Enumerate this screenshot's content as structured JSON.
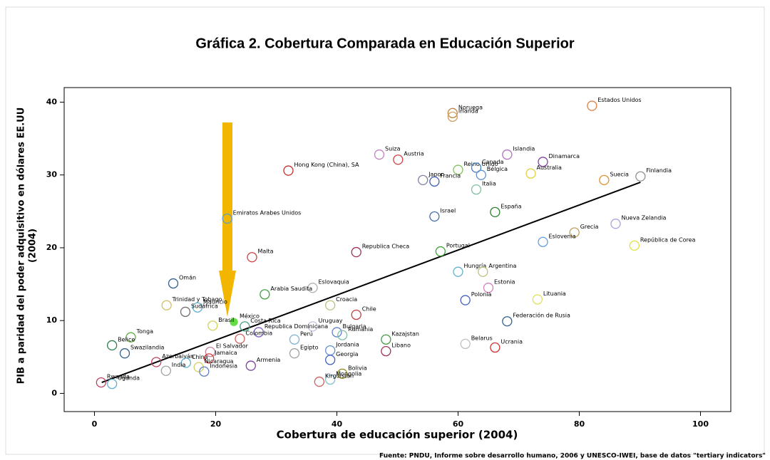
{
  "chart_data": {
    "type": "scatter",
    "title": "Gráfica 2. Cobertura Comparada en Educación Superior",
    "x_label": "Cobertura de educación superior (2004)",
    "y_label": [
      "PIB a paridad del poder adquisitivo en dólares EE.UU",
      "(2004)"
    ],
    "source": "Fuente: PNDU, Informe sobre desarrollo humano, 2006 y UNESCO-IWEI, base de datos \"tertiary indicators\"",
    "xlim": [
      -5,
      105
    ],
    "xticks": [
      0,
      20,
      40,
      60,
      80,
      100
    ],
    "ylim": [
      -2.5,
      42
    ],
    "yticks": [
      0,
      10,
      20,
      30,
      40
    ],
    "highlight_color": "#66dd44",
    "trend": {
      "color": "#000000",
      "x": [
        1.2,
        90.1
      ],
      "y": [
        1.5,
        29.0
      ]
    },
    "points": [
      {
        "label": "Estados Unidos",
        "x": 82.1,
        "y": 39.5,
        "color": "#e08040"
      },
      {
        "label": "Noruega",
        "x": 59.1,
        "y": 38.5,
        "color": "#c08040"
      },
      {
        "label": "Irlanda",
        "x": 59.1,
        "y": 38.0,
        "color": "#d0a060"
      },
      {
        "label": "Suiza",
        "x": 47.0,
        "y": 32.8,
        "color": "#c080c0"
      },
      {
        "label": "Austria",
        "x": 50.1,
        "y": 32.1,
        "color": "#d04040"
      },
      {
        "label": "Islandia",
        "x": 68.1,
        "y": 32.8,
        "color": "#b070c0"
      },
      {
        "label": "Dinamarca",
        "x": 74.0,
        "y": 31.8,
        "color": "#8040a0"
      },
      {
        "label": "Hong Kong (China), SA",
        "x": 32.0,
        "y": 30.6,
        "color": "#c03030"
      },
      {
        "label": "Reino Unido",
        "x": 60.0,
        "y": 30.7,
        "color": "#80c060"
      },
      {
        "label": "Canada",
        "x": 63.0,
        "y": 31.0,
        "color": "#4080c0"
      },
      {
        "label": "Bélgica",
        "x": 63.8,
        "y": 30.0,
        "color": "#6090d0"
      },
      {
        "label": "Australia",
        "x": 72.0,
        "y": 30.2,
        "color": "#e0d040"
      },
      {
        "label": "Japon",
        "x": 54.2,
        "y": 29.3,
        "color": "#8080a0"
      },
      {
        "label": "Francia",
        "x": 56.1,
        "y": 29.1,
        "color": "#4060c0"
      },
      {
        "label": "Italia",
        "x": 63.0,
        "y": 28.0,
        "color": "#80c0a0"
      },
      {
        "label": "Suecia",
        "x": 84.1,
        "y": 29.3,
        "color": "#e09030"
      },
      {
        "label": "Finlandia",
        "x": 90.1,
        "y": 29.8,
        "color": "#909090"
      },
      {
        "label": "Israel",
        "x": 56.1,
        "y": 24.3,
        "color": "#4070b0"
      },
      {
        "label": "España",
        "x": 66.1,
        "y": 24.9,
        "color": "#308030"
      },
      {
        "label": "Emiratos Arabes Unidos",
        "x": 21.9,
        "y": 24.0,
        "color": "#60a0c0"
      },
      {
        "label": "Nueva Zelandia",
        "x": 86.0,
        "y": 23.3,
        "color": "#b0a0e0"
      },
      {
        "label": "Grecia",
        "x": 79.2,
        "y": 22.1,
        "color": "#c0a060"
      },
      {
        "label": "Eslovenia",
        "x": 74.0,
        "y": 20.8,
        "color": "#60a0e0"
      },
      {
        "label": "República de Corea",
        "x": 89.1,
        "y": 20.3,
        "color": "#e0e040"
      },
      {
        "label": "Republica Checa",
        "x": 43.2,
        "y": 19.4,
        "color": "#a03060"
      },
      {
        "label": "Portugal",
        "x": 57.1,
        "y": 19.5,
        "color": "#40a040"
      },
      {
        "label": "Malta",
        "x": 26.0,
        "y": 18.7,
        "color": "#d04040"
      },
      {
        "label": "Hungría",
        "x": 60.0,
        "y": 16.7,
        "color": "#60b0d0"
      },
      {
        "label": "Argentina",
        "x": 64.1,
        "y": 16.7,
        "color": "#c0c080"
      },
      {
        "label": "Omán",
        "x": 13.0,
        "y": 15.1,
        "color": "#306090"
      },
      {
        "label": "Eslovaquia",
        "x": 36.0,
        "y": 14.5,
        "color": "#b0b0b0"
      },
      {
        "label": "Estonia",
        "x": 65.0,
        "y": 14.5,
        "color": "#d080c0"
      },
      {
        "label": "Arabia Saudita",
        "x": 28.1,
        "y": 13.6,
        "color": "#40a040"
      },
      {
        "label": "Lituania",
        "x": 73.1,
        "y": 12.9,
        "color": "#e0e060"
      },
      {
        "label": "Polonia",
        "x": 61.2,
        "y": 12.8,
        "color": "#4060c0"
      },
      {
        "label": "Trinidad y Tobago",
        "x": 11.9,
        "y": 12.1,
        "color": "#d0c060"
      },
      {
        "label": "Croacia",
        "x": 38.9,
        "y": 12.1,
        "color": "#c0c080"
      },
      {
        "label": "Mauricio",
        "x": 17.0,
        "y": 11.8,
        "color": "#60b0d0"
      },
      {
        "label": "Sudáfrica",
        "x": 15.0,
        "y": 11.2,
        "color": "#707070"
      },
      {
        "label": "Chile",
        "x": 43.2,
        "y": 10.8,
        "color": "#c04040"
      },
      {
        "label": "México",
        "x": 23.0,
        "y": 9.8,
        "color": "#66dd44"
      },
      {
        "label": "Federación de Rusia",
        "x": 68.1,
        "y": 9.9,
        "color": "#306090"
      },
      {
        "label": "Brasil",
        "x": 19.5,
        "y": 9.3,
        "color": "#d0d060"
      },
      {
        "label": "Costa Rica",
        "x": 24.8,
        "y": 9.2,
        "color": "#40a080"
      },
      {
        "label": "Uruguay",
        "x": 36.0,
        "y": 9.2,
        "color": "#c0c0e0"
      },
      {
        "label": "Tonga",
        "x": 6.0,
        "y": 7.7,
        "color": "#60b040"
      },
      {
        "label": "Belice",
        "x": 2.9,
        "y": 6.6,
        "color": "#308050"
      },
      {
        "label": "Republica Dominicana",
        "x": 27.1,
        "y": 8.4,
        "color": "#8060c0"
      },
      {
        "label": "Colombia",
        "x": 24.0,
        "y": 7.5,
        "color": "#d06060"
      },
      {
        "label": "Bulgaria",
        "x": 40.0,
        "y": 8.4,
        "color": "#6080d0"
      },
      {
        "label": "Rumania",
        "x": 40.9,
        "y": 8.0,
        "color": "#80c0a0"
      },
      {
        "label": "Kazajstan",
        "x": 48.1,
        "y": 7.4,
        "color": "#40a040"
      },
      {
        "label": "Libano",
        "x": 48.1,
        "y": 5.8,
        "color": "#a03060"
      },
      {
        "label": "Belarus",
        "x": 61.2,
        "y": 6.8,
        "color": "#c0c0c0"
      },
      {
        "label": "Ucrania",
        "x": 66.1,
        "y": 6.3,
        "color": "#d03030"
      },
      {
        "label": "Swazilandia",
        "x": 5.0,
        "y": 5.5,
        "color": "#306090"
      },
      {
        "label": "Perú",
        "x": 33.0,
        "y": 7.4,
        "color": "#80b0d0"
      },
      {
        "label": "El Salvador",
        "x": 19.1,
        "y": 5.7,
        "color": "#c080a0"
      },
      {
        "label": "Egipto",
        "x": 33.0,
        "y": 5.5,
        "color": "#a0a0a0"
      },
      {
        "label": "Jordania",
        "x": 38.9,
        "y": 5.9,
        "color": "#6090d0"
      },
      {
        "label": "Azerbaiyán",
        "x": 10.2,
        "y": 4.3,
        "color": "#c04060"
      },
      {
        "label": "China",
        "x": 15.1,
        "y": 4.2,
        "color": "#60b0d0"
      },
      {
        "label": "Jamaica",
        "x": 18.9,
        "y": 4.8,
        "color": "#d04040"
      },
      {
        "label": "Armenia",
        "x": 25.8,
        "y": 3.8,
        "color": "#8040a0"
      },
      {
        "label": "Georgia",
        "x": 38.9,
        "y": 4.6,
        "color": "#4060c0"
      },
      {
        "label": "India",
        "x": 11.8,
        "y": 3.1,
        "color": "#a0a0a0"
      },
      {
        "label": "Nicaragua",
        "x": 17.2,
        "y": 3.6,
        "color": "#d0d060"
      },
      {
        "label": "Indonesia",
        "x": 18.1,
        "y": 3.0,
        "color": "#6080c0"
      },
      {
        "label": "Bolivia",
        "x": 40.9,
        "y": 2.7,
        "color": "#909020"
      },
      {
        "label": "Mongolia",
        "x": 38.9,
        "y": 1.9,
        "color": "#80c0d0"
      },
      {
        "label": "Kirguistán",
        "x": 37.1,
        "y": 1.6,
        "color": "#d06060"
      },
      {
        "label": "Uganda",
        "x": 2.9,
        "y": 1.3,
        "color": "#60b0d0"
      },
      {
        "label": "Rwanda",
        "x": 1.1,
        "y": 1.5,
        "color": "#c04060"
      }
    ]
  }
}
